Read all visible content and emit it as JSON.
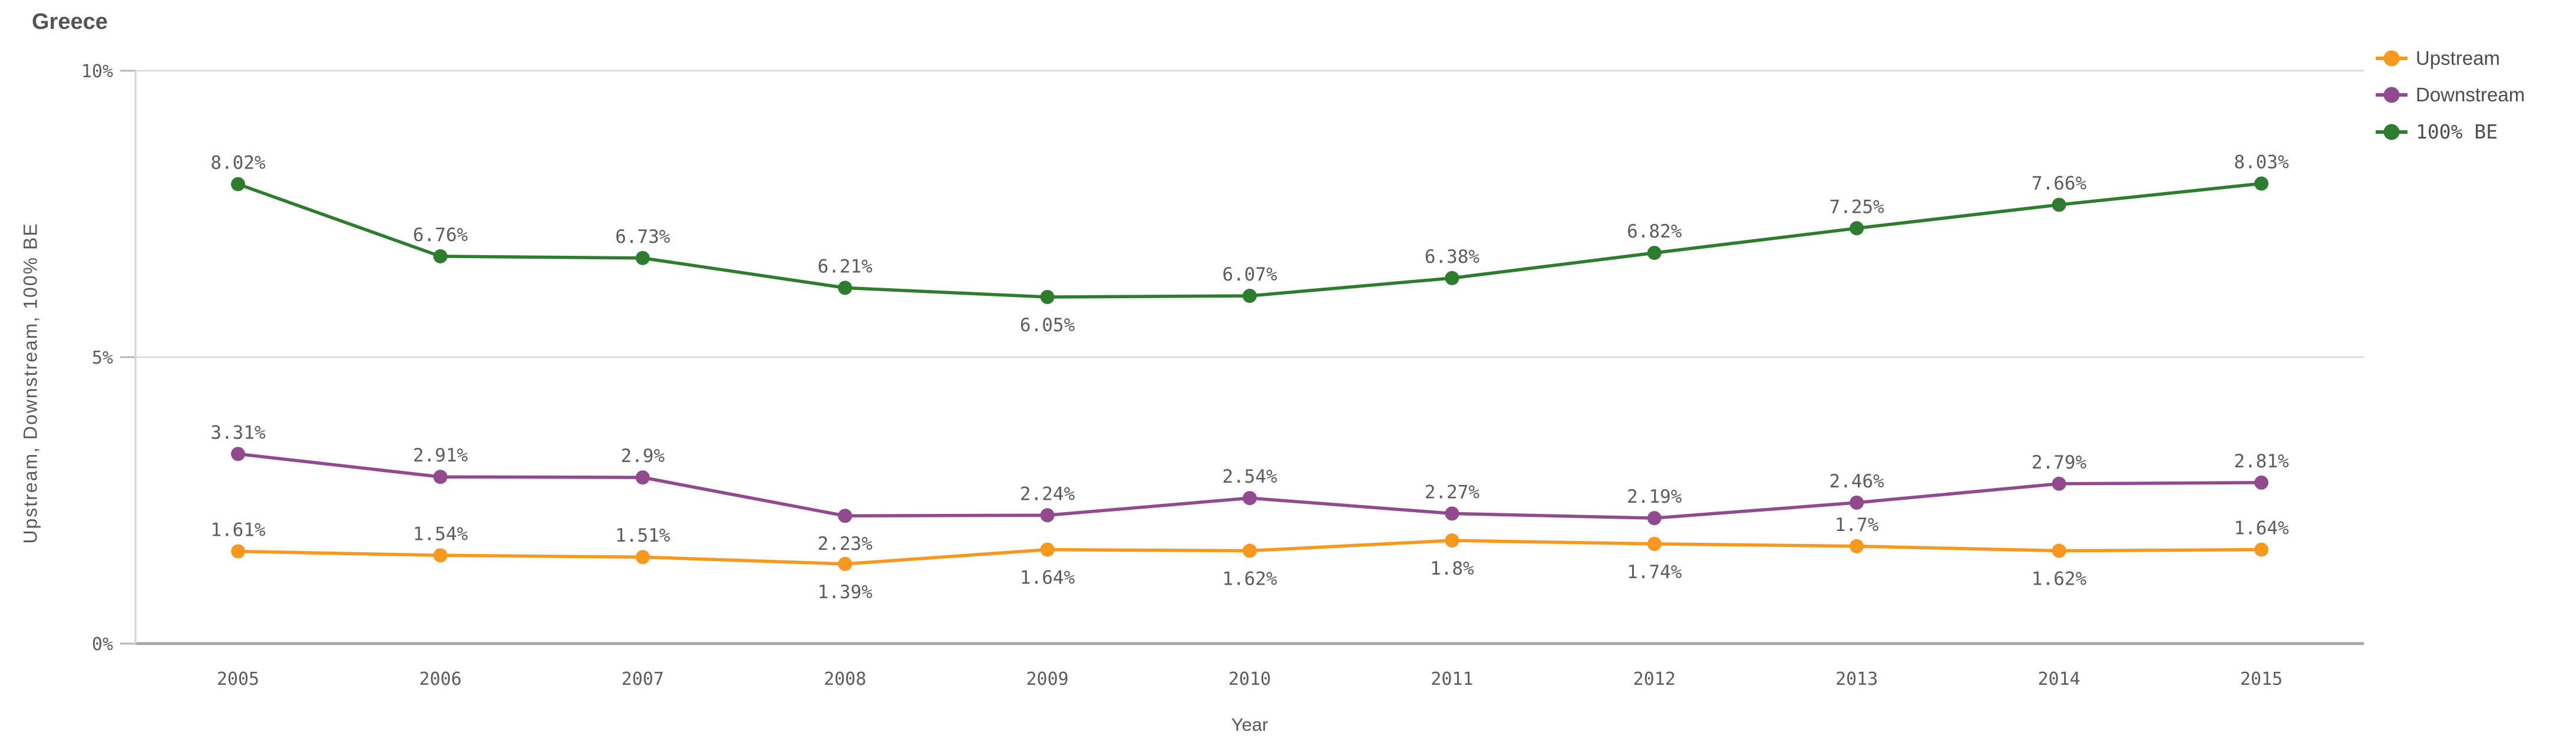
{
  "title": "Greece",
  "chart_data": {
    "type": "line",
    "title": "Greece",
    "xlabel": "Year",
    "ylabel": "Upstream, Downstream, 100% BE",
    "categories": [
      "2005",
      "2006",
      "2007",
      "2008",
      "2009",
      "2010",
      "2011",
      "2012",
      "2013",
      "2014",
      "2015"
    ],
    "ylim": [
      0,
      10
    ],
    "yticks": [
      {
        "value": 0,
        "label": "0%"
      },
      {
        "value": 5,
        "label": "5%"
      },
      {
        "value": 10,
        "label": "10%"
      }
    ],
    "grid": true,
    "legend_position": "top-right",
    "series": [
      {
        "name": "Upstream",
        "color": "#f8981d",
        "values": [
          1.61,
          1.54,
          1.51,
          1.39,
          1.64,
          1.62,
          1.8,
          1.74,
          1.7,
          1.62,
          1.64
        ],
        "labels": [
          "1.61%",
          "1.54%",
          "1.51%",
          "1.39%",
          "1.64%",
          "1.62%",
          "1.8%",
          "1.74%",
          "1.7%",
          "1.62%",
          "1.64%"
        ],
        "label_positions": [
          "above",
          "above",
          "above",
          "below",
          "below",
          "below",
          "below",
          "below",
          "above",
          "below",
          "above"
        ]
      },
      {
        "name": "Downstream",
        "color": "#924a8f",
        "values": [
          3.31,
          2.91,
          2.9,
          2.23,
          2.24,
          2.54,
          2.27,
          2.19,
          2.46,
          2.79,
          2.81
        ],
        "labels": [
          "3.31%",
          "2.91%",
          "2.9%",
          "2.23%",
          "2.24%",
          "2.54%",
          "2.27%",
          "2.19%",
          "2.46%",
          "2.79%",
          "2.81%"
        ],
        "label_positions": [
          "above",
          "above",
          "above",
          "below",
          "above",
          "above",
          "above",
          "above",
          "above",
          "above",
          "above"
        ]
      },
      {
        "name": "100% BE",
        "color": "#2e7d2e",
        "values": [
          8.02,
          6.76,
          6.73,
          6.21,
          6.05,
          6.07,
          6.38,
          6.82,
          7.25,
          7.66,
          8.03
        ],
        "labels": [
          "8.02%",
          "6.76%",
          "6.73%",
          "6.21%",
          "6.05%",
          "6.07%",
          "6.38%",
          "6.82%",
          "7.25%",
          "7.66%",
          "8.03%"
        ],
        "label_positions": [
          "above",
          "above",
          "above",
          "above",
          "below",
          "above",
          "above",
          "above",
          "above",
          "above",
          "above"
        ]
      }
    ],
    "colors": {
      "gridline": "#d9d9d9",
      "axis_line": "#a8a8a8",
      "tick_mark": "#b5b5b5",
      "label_text": "#5c5c5c"
    }
  }
}
